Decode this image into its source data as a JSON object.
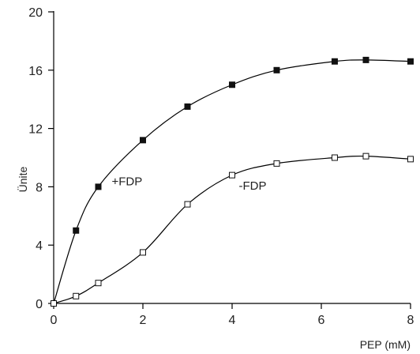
{
  "chart_data": {
    "type": "scatter",
    "title": "",
    "xlabel": "PEP (mM)",
    "ylabel": "Ünite",
    "xlim": [
      0,
      8
    ],
    "ylim": [
      0,
      20
    ],
    "xticks": [
      "0",
      "2",
      "4",
      "6",
      "8"
    ],
    "yticks": [
      "0",
      "4",
      "8",
      "12",
      "16",
      "20"
    ],
    "grid": false,
    "series": [
      {
        "marker": "filled-square",
        "x": [
          0,
          0.5,
          1,
          2,
          3,
          4,
          5,
          6.3,
          7,
          8
        ],
        "y": [
          0,
          5,
          8,
          11.2,
          13.5,
          15,
          16,
          16.6,
          16.7,
          16.6
        ]
      },
      {
        "marker": "open-square",
        "x": [
          0,
          0.5,
          1,
          2,
          3,
          4,
          5,
          6.3,
          7,
          8
        ],
        "y": [
          0,
          0.5,
          1.4,
          3.5,
          6.8,
          8.8,
          9.6,
          10,
          10.1,
          9.9
        ]
      }
    ],
    "annotations": [
      {
        "text": "+FDP",
        "x": 1.3,
        "y": 8.1
      },
      {
        "text": "-FDP",
        "x": 4.15,
        "y": 7.8
      }
    ]
  }
}
